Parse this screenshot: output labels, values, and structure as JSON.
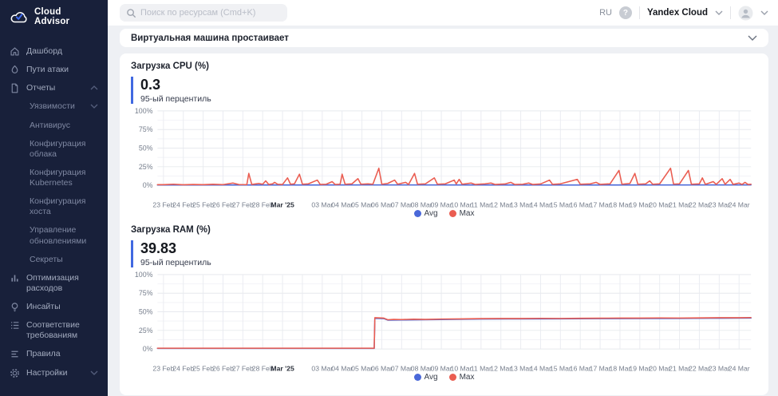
{
  "brand": {
    "name": "Cloud Advisor"
  },
  "topbar": {
    "search_placeholder": "Поиск по ресурсам (Cmd+K)",
    "lang": "RU",
    "help": "?",
    "org": "Yandex Cloud"
  },
  "sidebar": {
    "items": [
      {
        "id": "dashboard",
        "label": "Дашборд",
        "icon": "home"
      },
      {
        "id": "attack-paths",
        "label": "Пути атаки",
        "icon": "flame"
      },
      {
        "id": "reports",
        "label": "Отчеты",
        "icon": "doc",
        "chevron": "up"
      },
      {
        "id": "vulnerabilities",
        "label": "Уязвимости",
        "indent": true,
        "chevron": "down"
      },
      {
        "id": "antivirus",
        "label": "Антивирус",
        "indent": true
      },
      {
        "id": "cloud-config",
        "label": "Конфигурация облака",
        "indent": true
      },
      {
        "id": "kubernetes-config",
        "label": "Конфигурация Kubernetes",
        "indent": true
      },
      {
        "id": "host-config",
        "label": "Конфигурация хоста",
        "indent": true
      },
      {
        "id": "update-management",
        "label": "Управление обновлениями",
        "indent": true
      },
      {
        "id": "secrets",
        "label": "Секреты",
        "indent": true
      },
      {
        "id": "cost-optimization",
        "label": "Оптимизация расходов",
        "icon": "chart"
      },
      {
        "id": "insights",
        "label": "Инсайты",
        "icon": "bulb"
      },
      {
        "id": "compliance",
        "label": "Соответствие требованиям",
        "icon": "list"
      },
      {
        "id": "rules",
        "label": "Правила",
        "icon": "rules"
      },
      {
        "id": "settings",
        "label": "Настройки",
        "icon": "gear",
        "chevron": "down"
      }
    ]
  },
  "panel": {
    "title": "Виртуальная машина простаивает"
  },
  "colors": {
    "avg": "#4a68d9",
    "max": "#ea5d51",
    "accent": "#4169e1",
    "sidebar_bg": "#18203a"
  },
  "chart_data": [
    {
      "type": "line",
      "title": "Загрузка CPU (%)",
      "stat_value": "0.3",
      "stat_label": "95-ый перцентиль",
      "ylabel": "%",
      "ylim": [
        0,
        100
      ],
      "yticks": [
        0,
        25,
        50,
        75,
        100
      ],
      "legend_position": "bottom",
      "x_categories": [
        "23 Feb",
        "24 Feb",
        "25 Feb",
        "26 Feb",
        "27 Feb",
        "28 Feb",
        "Mar '25",
        "",
        "03 Mar",
        "04 Mar",
        "05 Mar",
        "06 Mar",
        "07 Mar",
        "08 Mar",
        "09 Mar",
        "10 Mar",
        "11 Mar",
        "12 Mar",
        "13 Mar",
        "14 Mar",
        "15 Mar",
        "16 Mar",
        "17 Mar",
        "18 Mar",
        "19 Mar",
        "20 Mar",
        "21 Mar",
        "22 Mar",
        "23 Mar",
        "24 Mar"
      ],
      "bold_x_index": 6,
      "series": [
        {
          "name": "Avg",
          "color": "#4a68d9",
          "points": [
            [
              -0.3,
              0.4
            ],
            [
              10,
              0.5
            ],
            [
              20,
              0.4
            ],
            [
              29.6,
              0.5
            ]
          ]
        },
        {
          "name": "Max",
          "color": "#ea5d51",
          "points": [
            [
              -0.3,
              0.8
            ],
            [
              0,
              0.8
            ],
            [
              0.5,
              1.5
            ],
            [
              1,
              0.7
            ],
            [
              1.5,
              1.2
            ],
            [
              2,
              0.8
            ],
            [
              2.5,
              1.4
            ],
            [
              3,
              0.9
            ],
            [
              3.5,
              3
            ],
            [
              3.8,
              1
            ],
            [
              4.2,
              0.9
            ],
            [
              4.3,
              16
            ],
            [
              4.45,
              1.2
            ],
            [
              4.8,
              2.5
            ],
            [
              5.0,
              1.5
            ],
            [
              5.15,
              6
            ],
            [
              5.3,
              1.2
            ],
            [
              5.5,
              2
            ],
            [
              5.6,
              4
            ],
            [
              5.75,
              1.5
            ],
            [
              6.0,
              1.2
            ],
            [
              6.25,
              10
            ],
            [
              6.4,
              1.5
            ],
            [
              6.6,
              2
            ],
            [
              6.85,
              15
            ],
            [
              7.0,
              1.5
            ],
            [
              7.3,
              2
            ],
            [
              7.75,
              7
            ],
            [
              7.9,
              1.2
            ],
            [
              8.2,
              1.5
            ],
            [
              8.5,
              5
            ],
            [
              8.65,
              1.2
            ],
            [
              8.9,
              1.5
            ],
            [
              9.0,
              15
            ],
            [
              9.15,
              1.5
            ],
            [
              9.5,
              2
            ],
            [
              9.8,
              9
            ],
            [
              9.95,
              1.5
            ],
            [
              10.3,
              2
            ],
            [
              10.55,
              1.5
            ],
            [
              10.85,
              23
            ],
            [
              11.0,
              1.5
            ],
            [
              11.3,
              2.5
            ],
            [
              11.65,
              7
            ],
            [
              11.8,
              1.5
            ],
            [
              12.2,
              4
            ],
            [
              12.35,
              1.2
            ],
            [
              12.65,
              16
            ],
            [
              12.8,
              1.5
            ],
            [
              13.2,
              2
            ],
            [
              13.65,
              10
            ],
            [
              13.8,
              1.5
            ],
            [
              14.2,
              2
            ],
            [
              14.65,
              7
            ],
            [
              14.75,
              1.8
            ],
            [
              14.9,
              8
            ],
            [
              15.05,
              1.5
            ],
            [
              15.5,
              3
            ],
            [
              15.7,
              1.2
            ],
            [
              16.2,
              2
            ],
            [
              16.5,
              3
            ],
            [
              16.7,
              1.2
            ],
            [
              17.2,
              1.8
            ],
            [
              17.5,
              4
            ],
            [
              17.7,
              1.2
            ],
            [
              18.1,
              1.5
            ],
            [
              18.4,
              3
            ],
            [
              18.6,
              1.2
            ],
            [
              19.0,
              1.8
            ],
            [
              19.45,
              7
            ],
            [
              19.6,
              1.3
            ],
            [
              20.0,
              2
            ],
            [
              20.85,
              8
            ],
            [
              21.0,
              1.4
            ],
            [
              21.5,
              2
            ],
            [
              21.8,
              4
            ],
            [
              22.0,
              1.3
            ],
            [
              22.5,
              2
            ],
            [
              22.95,
              20
            ],
            [
              23.1,
              1.5
            ],
            [
              23.5,
              2.5
            ],
            [
              23.75,
              16
            ],
            [
              23.9,
              1.5
            ],
            [
              24.3,
              2
            ],
            [
              24.5,
              6
            ],
            [
              24.65,
              1.4
            ],
            [
              25.0,
              2
            ],
            [
              25.55,
              23
            ],
            [
              25.7,
              1.6
            ],
            [
              26.0,
              2
            ],
            [
              26.45,
              20
            ],
            [
              26.6,
              1.5
            ],
            [
              27.0,
              2
            ],
            [
              27.15,
              10
            ],
            [
              27.3,
              1.4
            ],
            [
              27.7,
              5
            ],
            [
              27.85,
              1.3
            ],
            [
              28.15,
              9
            ],
            [
              28.3,
              1.4
            ],
            [
              28.55,
              8
            ],
            [
              28.7,
              1.3
            ],
            [
              29.0,
              3
            ],
            [
              29.15,
              1.2
            ],
            [
              29.3,
              4
            ],
            [
              29.45,
              1.2
            ],
            [
              29.6,
              1.5
            ]
          ]
        }
      ]
    },
    {
      "type": "line",
      "title": "Загрузка RAM (%)",
      "stat_value": "39.83",
      "stat_label": "95-ый перцентиль",
      "ylabel": "%",
      "ylim": [
        0,
        100
      ],
      "yticks": [
        0,
        25,
        50,
        75,
        100
      ],
      "legend_position": "bottom",
      "x_categories": [
        "23 Feb",
        "24 Feb",
        "25 Feb",
        "26 Feb",
        "27 Feb",
        "28 Feb",
        "Mar '25",
        "",
        "03 Mar",
        "04 Mar",
        "05 Mar",
        "06 Mar",
        "07 Mar",
        "08 Mar",
        "09 Mar",
        "10 Mar",
        "11 Mar",
        "12 Mar",
        "13 Mar",
        "14 Mar",
        "15 Mar",
        "16 Mar",
        "17 Mar",
        "18 Mar",
        "19 Mar",
        "20 Mar",
        "21 Mar",
        "22 Mar",
        "23 Mar",
        "24 Mar"
      ],
      "bold_x_index": 6,
      "series": [
        {
          "name": "Avg",
          "color": "#4a68d9",
          "points": [
            [
              -0.3,
              0.8
            ],
            [
              10.5,
              0.8
            ],
            [
              10.62,
              0.8
            ],
            [
              10.65,
              41.2
            ],
            [
              11.1,
              40.8
            ],
            [
              11.3,
              38.8
            ],
            [
              12,
              39
            ],
            [
              14,
              39.6
            ],
            [
              16,
              40.2
            ],
            [
              18,
              40.4
            ],
            [
              20,
              40.5
            ],
            [
              22,
              40.8
            ],
            [
              24,
              41
            ],
            [
              26,
              41.1
            ],
            [
              28,
              41.4
            ],
            [
              29.6,
              41.6
            ]
          ]
        },
        {
          "name": "Max",
          "color": "#ea5d51",
          "points": [
            [
              -0.3,
              1
            ],
            [
              10.5,
              1
            ],
            [
              10.62,
              1
            ],
            [
              10.65,
              42
            ],
            [
              11.1,
              41.5
            ],
            [
              11.3,
              39.3
            ],
            [
              11.6,
              39.8
            ],
            [
              12.0,
              39.6
            ],
            [
              12.6,
              40
            ],
            [
              13.2,
              39.8
            ],
            [
              14,
              40.2
            ],
            [
              15,
              40.4
            ],
            [
              16,
              40.8
            ],
            [
              17,
              40.9
            ],
            [
              18,
              41
            ],
            [
              19,
              41.2
            ],
            [
              20,
              41.1
            ],
            [
              21,
              41.3
            ],
            [
              22,
              41.4
            ],
            [
              23,
              41.5
            ],
            [
              24,
              41.5
            ],
            [
              25,
              41.7
            ],
            [
              26,
              41.6
            ],
            [
              27,
              41.8
            ],
            [
              28,
              42
            ],
            [
              29,
              42
            ],
            [
              29.6,
              42.2
            ]
          ]
        }
      ]
    }
  ]
}
